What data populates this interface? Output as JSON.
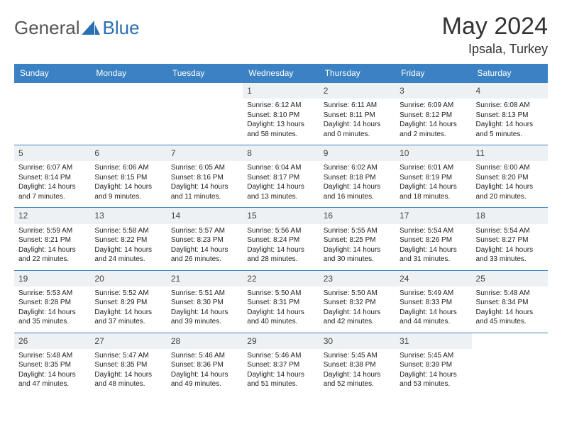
{
  "logo": {
    "text1": "General",
    "text2": "Blue",
    "color_gray": "#6a6a6a",
    "color_blue": "#2b6fb3"
  },
  "title": "May 2024",
  "location": "Ipsala, Turkey",
  "header_bg": "#3b82c4",
  "day_bg": "#eef1f3",
  "border_color": "#3b82c4",
  "weekdays": [
    "Sunday",
    "Monday",
    "Tuesday",
    "Wednesday",
    "Thursday",
    "Friday",
    "Saturday"
  ],
  "weeks": [
    [
      null,
      null,
      null,
      {
        "n": "1",
        "sr": "6:12 AM",
        "ss": "8:10 PM",
        "dl": "13 hours and 58 minutes."
      },
      {
        "n": "2",
        "sr": "6:11 AM",
        "ss": "8:11 PM",
        "dl": "14 hours and 0 minutes."
      },
      {
        "n": "3",
        "sr": "6:09 AM",
        "ss": "8:12 PM",
        "dl": "14 hours and 2 minutes."
      },
      {
        "n": "4",
        "sr": "6:08 AM",
        "ss": "8:13 PM",
        "dl": "14 hours and 5 minutes."
      }
    ],
    [
      {
        "n": "5",
        "sr": "6:07 AM",
        "ss": "8:14 PM",
        "dl": "14 hours and 7 minutes."
      },
      {
        "n": "6",
        "sr": "6:06 AM",
        "ss": "8:15 PM",
        "dl": "14 hours and 9 minutes."
      },
      {
        "n": "7",
        "sr": "6:05 AM",
        "ss": "8:16 PM",
        "dl": "14 hours and 11 minutes."
      },
      {
        "n": "8",
        "sr": "6:04 AM",
        "ss": "8:17 PM",
        "dl": "14 hours and 13 minutes."
      },
      {
        "n": "9",
        "sr": "6:02 AM",
        "ss": "8:18 PM",
        "dl": "14 hours and 16 minutes."
      },
      {
        "n": "10",
        "sr": "6:01 AM",
        "ss": "8:19 PM",
        "dl": "14 hours and 18 minutes."
      },
      {
        "n": "11",
        "sr": "6:00 AM",
        "ss": "8:20 PM",
        "dl": "14 hours and 20 minutes."
      }
    ],
    [
      {
        "n": "12",
        "sr": "5:59 AM",
        "ss": "8:21 PM",
        "dl": "14 hours and 22 minutes."
      },
      {
        "n": "13",
        "sr": "5:58 AM",
        "ss": "8:22 PM",
        "dl": "14 hours and 24 minutes."
      },
      {
        "n": "14",
        "sr": "5:57 AM",
        "ss": "8:23 PM",
        "dl": "14 hours and 26 minutes."
      },
      {
        "n": "15",
        "sr": "5:56 AM",
        "ss": "8:24 PM",
        "dl": "14 hours and 28 minutes."
      },
      {
        "n": "16",
        "sr": "5:55 AM",
        "ss": "8:25 PM",
        "dl": "14 hours and 30 minutes."
      },
      {
        "n": "17",
        "sr": "5:54 AM",
        "ss": "8:26 PM",
        "dl": "14 hours and 31 minutes."
      },
      {
        "n": "18",
        "sr": "5:54 AM",
        "ss": "8:27 PM",
        "dl": "14 hours and 33 minutes."
      }
    ],
    [
      {
        "n": "19",
        "sr": "5:53 AM",
        "ss": "8:28 PM",
        "dl": "14 hours and 35 minutes."
      },
      {
        "n": "20",
        "sr": "5:52 AM",
        "ss": "8:29 PM",
        "dl": "14 hours and 37 minutes."
      },
      {
        "n": "21",
        "sr": "5:51 AM",
        "ss": "8:30 PM",
        "dl": "14 hours and 39 minutes."
      },
      {
        "n": "22",
        "sr": "5:50 AM",
        "ss": "8:31 PM",
        "dl": "14 hours and 40 minutes."
      },
      {
        "n": "23",
        "sr": "5:50 AM",
        "ss": "8:32 PM",
        "dl": "14 hours and 42 minutes."
      },
      {
        "n": "24",
        "sr": "5:49 AM",
        "ss": "8:33 PM",
        "dl": "14 hours and 44 minutes."
      },
      {
        "n": "25",
        "sr": "5:48 AM",
        "ss": "8:34 PM",
        "dl": "14 hours and 45 minutes."
      }
    ],
    [
      {
        "n": "26",
        "sr": "5:48 AM",
        "ss": "8:35 PM",
        "dl": "14 hours and 47 minutes."
      },
      {
        "n": "27",
        "sr": "5:47 AM",
        "ss": "8:35 PM",
        "dl": "14 hours and 48 minutes."
      },
      {
        "n": "28",
        "sr": "5:46 AM",
        "ss": "8:36 PM",
        "dl": "14 hours and 49 minutes."
      },
      {
        "n": "29",
        "sr": "5:46 AM",
        "ss": "8:37 PM",
        "dl": "14 hours and 51 minutes."
      },
      {
        "n": "30",
        "sr": "5:45 AM",
        "ss": "8:38 PM",
        "dl": "14 hours and 52 minutes."
      },
      {
        "n": "31",
        "sr": "5:45 AM",
        "ss": "8:39 PM",
        "dl": "14 hours and 53 minutes."
      },
      null
    ]
  ],
  "labels": {
    "sunrise": "Sunrise:",
    "sunset": "Sunset:",
    "daylight": "Daylight:"
  }
}
